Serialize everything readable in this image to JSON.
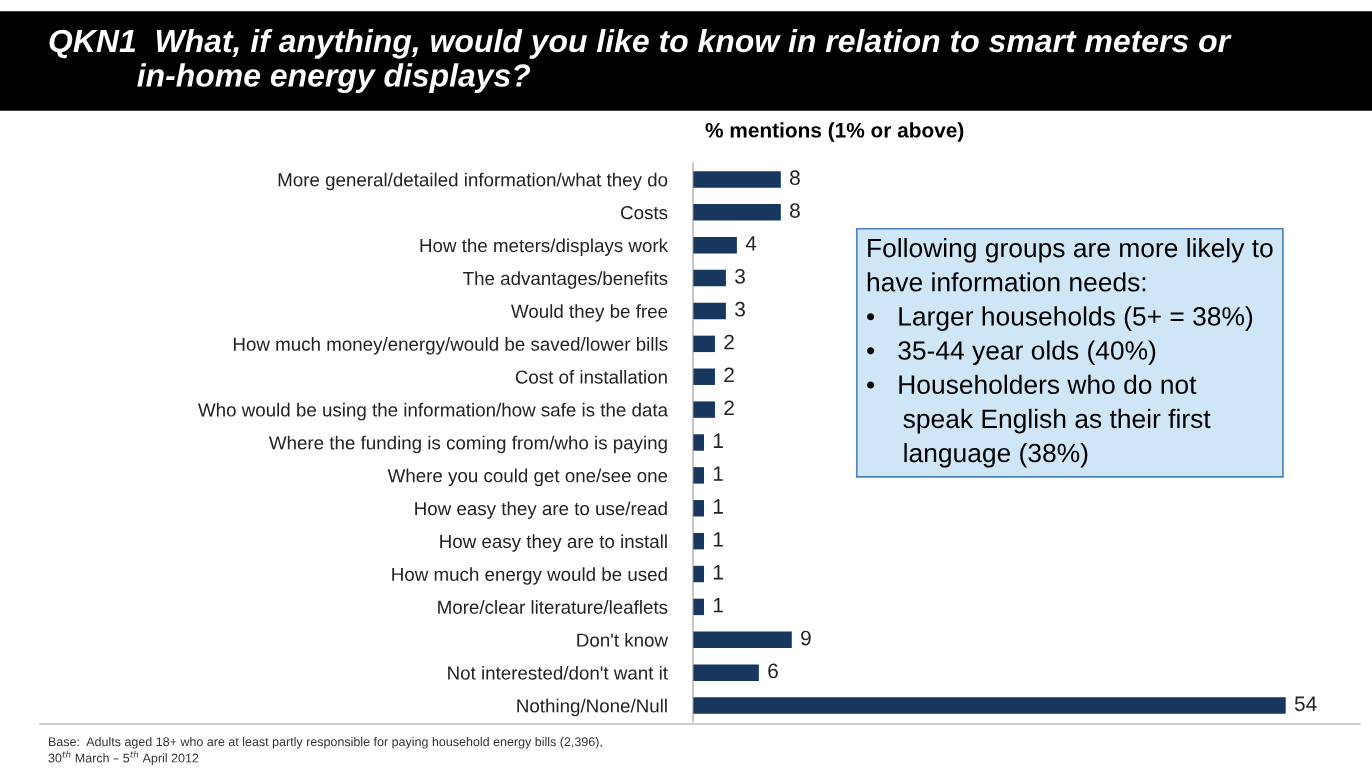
{
  "chart_data": {
    "type": "bar",
    "orientation": "horizontal",
    "title": "QKN1  What, if anything, would you like to know in relation to smart meters or\n          in-home energy displays?",
    "subtitle": "% mentions (1% or above)",
    "categories": [
      "More general/detailed information/what they do",
      "Costs",
      "How the meters/displays work",
      "The advantages/benefits",
      "Would they be free",
      "How much money/energy/would be saved/lower bills",
      "Cost of installation",
      "Who would be using the information/how safe is the data",
      "Where the funding is coming from/who is paying",
      "Where you could get one/see one",
      "How easy they are to use/read",
      "How easy they are to install",
      "How much energy would be used",
      "More/clear literature/leaflets",
      "Don't know",
      "Not interested/don't want it",
      "Nothing/None/Null"
    ],
    "values": [
      8,
      8,
      4,
      3,
      3,
      2,
      2,
      2,
      1,
      1,
      1,
      1,
      1,
      1,
      9,
      6,
      54
    ],
    "color": "#17375e",
    "data_labels": true,
    "grid": false,
    "legend": false,
    "annotations": [
      "Following groups are more likely to\nhave information needs:\n•   Larger households (5+ = 38%)\n•   35-44 year olds (40%)\n•   Householders who do not\n     speak English as their first\n     language (38%)",
      "Base:  Adults aged 18+ who are at least partly responsible for paying household energy bills (2,396),\n30$^{th}$ March – 5$^{th}$ April 2012"
    ]
  }
}
